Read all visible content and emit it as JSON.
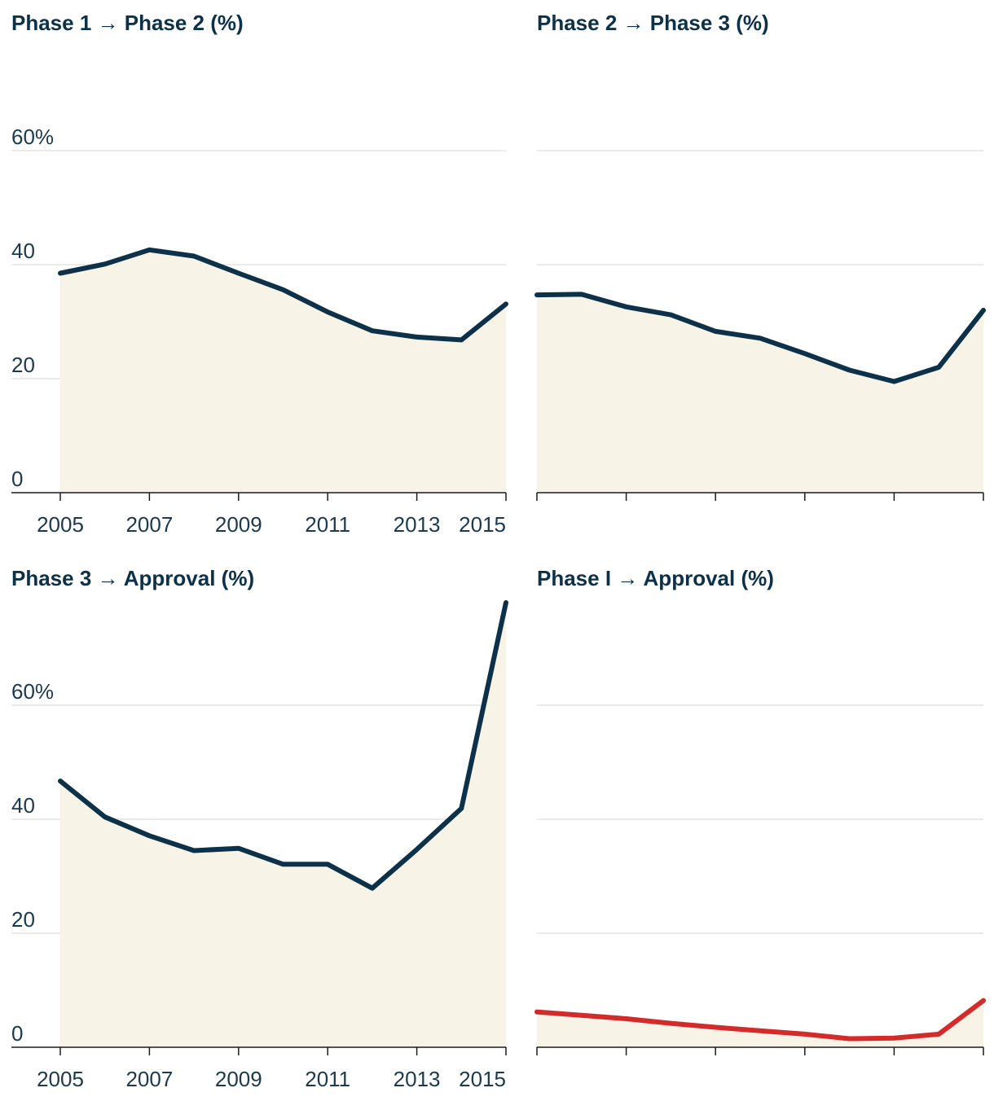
{
  "chart_data": [
    {
      "type": "area",
      "title": "Phase 1 → Phase 2 (%)",
      "x": [
        2005,
        2006,
        2007,
        2008,
        2009,
        2010,
        2011,
        2012,
        2013,
        2014,
        2015
      ],
      "values": [
        38.5,
        40.1,
        42.6,
        41.5,
        38.5,
        35.6,
        31.7,
        28.4,
        27.3,
        26.8,
        33.1
      ],
      "ylim": [
        0,
        60
      ],
      "y_ticks": [
        0,
        20,
        40,
        60
      ],
      "y_tick_labels": [
        "0",
        "20",
        "40",
        "60%"
      ],
      "x_tick_labels": [
        "2005",
        "2007",
        "2009",
        "2011",
        "2013",
        "2015"
      ],
      "line_color": "#0c3149",
      "fill_color": "#f7f3e6",
      "show_y_labels": true,
      "show_x_labels": true
    },
    {
      "type": "area",
      "title": "Phase 2 → Phase 3 (%)",
      "x": [
        2005,
        2006,
        2007,
        2008,
        2009,
        2010,
        2011,
        2012,
        2013,
        2014,
        2015
      ],
      "values": [
        34.7,
        34.8,
        32.6,
        31.2,
        28.3,
        27.1,
        24.4,
        21.5,
        19.5,
        22.0,
        32.0
      ],
      "ylim": [
        0,
        60
      ],
      "y_ticks": [
        0,
        20,
        40,
        60
      ],
      "line_color": "#0c3149",
      "fill_color": "#f7f3e6",
      "show_y_labels": false,
      "show_x_labels": false
    },
    {
      "type": "area",
      "title": "Phase 3 → Approval (%)",
      "x": [
        2005,
        2006,
        2007,
        2008,
        2009,
        2010,
        2011,
        2012,
        2013,
        2014,
        2015
      ],
      "values": [
        46.7,
        40.4,
        37.1,
        34.5,
        34.9,
        32.1,
        32.1,
        27.9,
        34.7,
        41.9,
        78.0
      ],
      "ylim": [
        0,
        60
      ],
      "y_ticks": [
        0,
        20,
        40,
        60
      ],
      "y_tick_labels": [
        "0",
        "20",
        "40",
        "60%"
      ],
      "x_tick_labels": [
        "2005",
        "2007",
        "2009",
        "2011",
        "2013",
        "2015"
      ],
      "line_color": "#0c3149",
      "fill_color": "#f7f3e6",
      "show_y_labels": true,
      "show_x_labels": true
    },
    {
      "type": "area",
      "title": "Phase I → Approval (%)",
      "x": [
        2005,
        2006,
        2007,
        2008,
        2009,
        2010,
        2011,
        2012,
        2013,
        2014,
        2015
      ],
      "values": [
        6.2,
        5.6,
        5.0,
        4.2,
        3.5,
        2.9,
        2.3,
        1.5,
        1.6,
        2.3,
        8.2
      ],
      "ylim": [
        0,
        60
      ],
      "y_ticks": [
        0,
        20,
        40,
        60
      ],
      "line_color": "#d42a2a",
      "fill_color": "#f7f3e6",
      "show_y_labels": false,
      "show_x_labels": false
    }
  ]
}
